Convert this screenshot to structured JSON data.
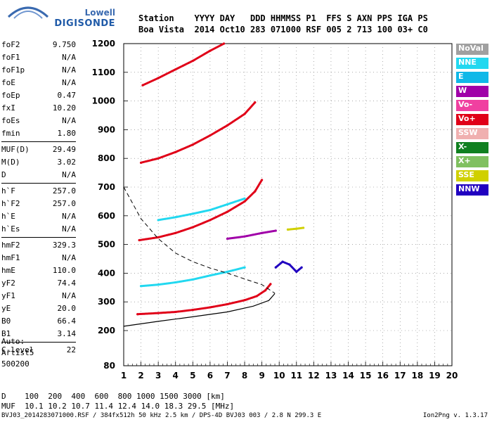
{
  "logo": {
    "line1": "Lowell",
    "line2": "DIGISONDE"
  },
  "header": {
    "line1": "Station    YYYY DAY   DDD HHMMSS P1  FFS S AXN PPS IGA PS",
    "line2": "Boa Vista  2014 Oct10 283 071000 RSF 005 2 713 100 03+ C0"
  },
  "params": [
    {
      "label": "foF2",
      "value": "9.750"
    },
    {
      "label": "foF1",
      "value": "N/A"
    },
    {
      "label": "foF1p",
      "value": "N/A"
    },
    {
      "label": "foE",
      "value": "N/A"
    },
    {
      "label": "foEp",
      "value": "0.47"
    },
    {
      "label": "fxI",
      "value": "10.20"
    },
    {
      "label": "foEs",
      "value": "N/A"
    },
    {
      "label": "fmin",
      "value": "1.80"
    },
    {
      "label": "MUF(D)",
      "value": "29.49"
    },
    {
      "label": "M(D)",
      "value": "3.02"
    },
    {
      "label": "D",
      "value": "N/A"
    },
    {
      "label": "h`F",
      "value": "257.0"
    },
    {
      "label": "h`F2",
      "value": "257.0"
    },
    {
      "label": "h`E",
      "value": "N/A"
    },
    {
      "label": "h`Es",
      "value": "N/A"
    },
    {
      "label": "hmF2",
      "value": "329.3"
    },
    {
      "label": "hmF1",
      "value": "N/A"
    },
    {
      "label": "hmE",
      "value": "110.0"
    },
    {
      "label": "yF2",
      "value": "74.4"
    },
    {
      "label": "yF1",
      "value": "N/A"
    },
    {
      "label": "yE",
      "value": "20.0"
    },
    {
      "label": "B0",
      "value": "66.4"
    },
    {
      "label": "B1",
      "value": "3.14"
    },
    {
      "label": "C-level",
      "value": "22"
    }
  ],
  "auto": {
    "l1": "Auto:",
    "l2": "Artist5",
    "l3": "500200"
  },
  "heights": {
    "l1": "D    100  200  400  600  800 1000 1500 3000 [km]",
    "l2": "MUF  10.1 10.2 10.7 11.4 12.4 14.0 18.3 29.5 [MHz]"
  },
  "footer": "BVJ03_2014283071000.RSF / 384fx512h 50 kHz 2.5 km / DPS-4D BVJ03 003 / 2.8 N 299.3 E",
  "version": "Ion2Png v. 1.3.17",
  "legend": [
    {
      "label": "NoVal",
      "color": "#a0a0a0"
    },
    {
      "label": "NNE",
      "color": "#22d8f0"
    },
    {
      "label": "E",
      "color": "#10b8e8"
    },
    {
      "label": "W",
      "color": "#a000a8"
    },
    {
      "label": "Vo-",
      "color": "#f040a0"
    },
    {
      "label": "Vo+",
      "color": "#e00018"
    },
    {
      "label": "SSW",
      "color": "#f0b0b0"
    },
    {
      "label": "X-",
      "color": "#108020"
    },
    {
      "label": "X+",
      "color": "#80c060"
    },
    {
      "label": "SSE",
      "color": "#d0d000"
    },
    {
      "label": "NNW",
      "color": "#2000c0"
    }
  ],
  "chart_data": {
    "type": "scatter",
    "xlim": [
      1,
      20
    ],
    "ylim": [
      80,
      1200
    ],
    "x_ticks": [
      1,
      2,
      3,
      4,
      5,
      6,
      7,
      8,
      9,
      10,
      11,
      12,
      13,
      14,
      15,
      16,
      17,
      18,
      19,
      20
    ],
    "y_ticks": [
      80,
      200,
      300,
      400,
      500,
      600,
      700,
      800,
      900,
      1000,
      1100,
      1200
    ],
    "grid": true,
    "legend_position": "right",
    "traces": [
      {
        "name": "Vo+",
        "color": "#e00018",
        "points": [
          [
            1.8,
            257
          ],
          [
            3,
            261
          ],
          [
            4,
            265
          ],
          [
            5,
            272
          ],
          [
            6,
            281
          ],
          [
            7,
            292
          ],
          [
            8,
            306
          ],
          [
            8.7,
            320
          ],
          [
            9.2,
            340
          ],
          [
            9.5,
            362
          ]
        ]
      },
      {
        "name": "Vo+",
        "color": "#e00018",
        "points": [
          [
            1.9,
            515
          ],
          [
            3,
            525
          ],
          [
            4,
            540
          ],
          [
            5,
            560
          ],
          [
            6,
            585
          ],
          [
            7,
            614
          ],
          [
            8,
            650
          ],
          [
            8.6,
            685
          ],
          [
            9,
            725
          ]
        ]
      },
      {
        "name": "Vo+",
        "color": "#e00018",
        "points": [
          [
            2,
            785
          ],
          [
            3,
            800
          ],
          [
            4,
            822
          ],
          [
            5,
            848
          ],
          [
            6,
            880
          ],
          [
            7,
            915
          ],
          [
            8,
            955
          ],
          [
            8.6,
            995
          ]
        ]
      },
      {
        "name": "Vo+",
        "color": "#e00018",
        "points": [
          [
            2.1,
            1055
          ],
          [
            3,
            1080
          ],
          [
            4,
            1110
          ],
          [
            5,
            1140
          ],
          [
            6,
            1175
          ],
          [
            6.8,
            1200
          ]
        ]
      },
      {
        "name": "NNE",
        "color": "#22d8f0",
        "points": [
          [
            2,
            355
          ],
          [
            3,
            360
          ],
          [
            4,
            368
          ],
          [
            5,
            378
          ],
          [
            6,
            392
          ],
          [
            7,
            405
          ],
          [
            8,
            420
          ]
        ]
      },
      {
        "name": "NNE",
        "color": "#22d8f0",
        "points": [
          [
            3,
            585
          ],
          [
            4,
            595
          ],
          [
            5,
            607
          ],
          [
            6,
            620
          ],
          [
            7,
            640
          ],
          [
            8,
            660
          ]
        ]
      },
      {
        "name": "NNW",
        "color": "#2000c0",
        "points": [
          [
            9.8,
            420
          ],
          [
            10.2,
            440
          ],
          [
            10.6,
            430
          ],
          [
            11,
            405
          ],
          [
            11.3,
            420
          ]
        ]
      },
      {
        "name": "SSE",
        "color": "#d0d000",
        "points": [
          [
            10.5,
            552
          ],
          [
            11,
            555
          ],
          [
            11.4,
            558
          ]
        ]
      },
      {
        "name": "W",
        "color": "#a000a8",
        "points": [
          [
            7,
            520
          ],
          [
            8,
            528
          ],
          [
            9,
            540
          ],
          [
            9.8,
            548
          ]
        ]
      }
    ],
    "profile": {
      "points": [
        [
          1,
          215
        ],
        [
          3,
          232
        ],
        [
          5,
          248
        ],
        [
          7,
          265
        ],
        [
          8.5,
          285
        ],
        [
          9.4,
          305
        ],
        [
          9.75,
          329
        ]
      ]
    },
    "dashed_curve": {
      "points": [
        [
          1,
          700
        ],
        [
          2,
          590
        ],
        [
          3,
          520
        ],
        [
          4,
          470
        ],
        [
          5,
          440
        ],
        [
          6,
          418
        ],
        [
          7,
          400
        ],
        [
          8,
          380
        ],
        [
          9,
          360
        ],
        [
          9.75,
          330
        ]
      ]
    }
  }
}
